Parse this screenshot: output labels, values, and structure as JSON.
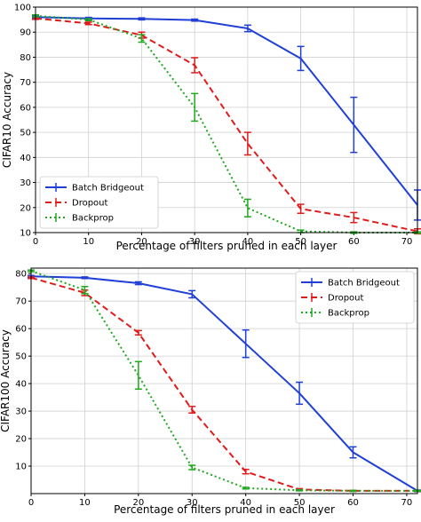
{
  "chart_data": [
    {
      "type": "line",
      "title": "",
      "xlabel": "Percentage of filters pruned in each layer",
      "ylabel": "CIFAR10 Accuracy",
      "xlim": [
        0,
        72
      ],
      "ylim": [
        10,
        100
      ],
      "xticks": [
        0,
        10,
        20,
        30,
        40,
        50,
        60,
        70
      ],
      "yticks": [
        10,
        20,
        30,
        40,
        50,
        60,
        70,
        80,
        90,
        100
      ],
      "grid": true,
      "legend_position": "lower-left",
      "x": [
        0,
        10,
        20,
        30,
        40,
        50,
        60,
        72
      ],
      "series": [
        {
          "name": "Batch Bridgeout",
          "color": "#1f3fd6",
          "style": "solid",
          "values": [
            96,
            95.5,
            95.3,
            94.8,
            91.5,
            79.5,
            53,
            21
          ],
          "errors": [
            0.4,
            0.4,
            0.4,
            0.4,
            1.3,
            4.8,
            11,
            6
          ]
        },
        {
          "name": "Dropout",
          "color": "#e01b1b",
          "style": "dashed",
          "values": [
            95.5,
            93.5,
            88.8,
            76.8,
            45.5,
            19.5,
            16,
            10.5
          ],
          "errors": [
            0.4,
            0.5,
            1.2,
            3,
            4.5,
            1.8,
            2,
            1
          ]
        },
        {
          "name": "Backprop",
          "color": "#1fa81f",
          "style": "dotted",
          "values": [
            96.5,
            95,
            87.5,
            60,
            19.8,
            10.5,
            10,
            10
          ],
          "errors": [
            0.4,
            0.4,
            1.5,
            5.5,
            3.5,
            0.5,
            0.3,
            0.3
          ]
        }
      ]
    },
    {
      "type": "line",
      "title": "",
      "xlabel": "Percentage of filters pruned in each layer",
      "ylabel": "CIFAR100 Accuracy",
      "xlim": [
        0,
        72
      ],
      "ylim": [
        0,
        82
      ],
      "xticks": [
        0,
        10,
        20,
        30,
        40,
        50,
        60,
        70
      ],
      "yticks": [
        10,
        20,
        30,
        40,
        50,
        60,
        70,
        80
      ],
      "grid": true,
      "legend_position": "top-right",
      "x": [
        0,
        10,
        20,
        30,
        40,
        50,
        60,
        72
      ],
      "series": [
        {
          "name": "Batch Bridgeout",
          "color": "#1f3fd6",
          "style": "solid",
          "values": [
            79,
            78.5,
            76.5,
            72.5,
            54.5,
            36.5,
            15,
            1
          ],
          "errors": [
            0.3,
            0.3,
            0.5,
            1.3,
            5,
            4,
            2,
            0.3
          ]
        },
        {
          "name": "Dropout",
          "color": "#e01b1b",
          "style": "dashed",
          "values": [
            78.5,
            73,
            58.5,
            30.5,
            8,
            1.5,
            1,
            1
          ],
          "errors": [
            0.3,
            1,
            0.8,
            1.2,
            0.8,
            0.3,
            0.2,
            0.2
          ]
        },
        {
          "name": "Backprop",
          "color": "#1fa81f",
          "style": "dotted",
          "values": [
            81,
            74,
            43,
            9.5,
            2,
            1.2,
            1,
            1
          ],
          "errors": [
            0.3,
            1.3,
            5,
            0.8,
            0.3,
            0.2,
            0.2,
            0.2
          ]
        }
      ]
    }
  ]
}
